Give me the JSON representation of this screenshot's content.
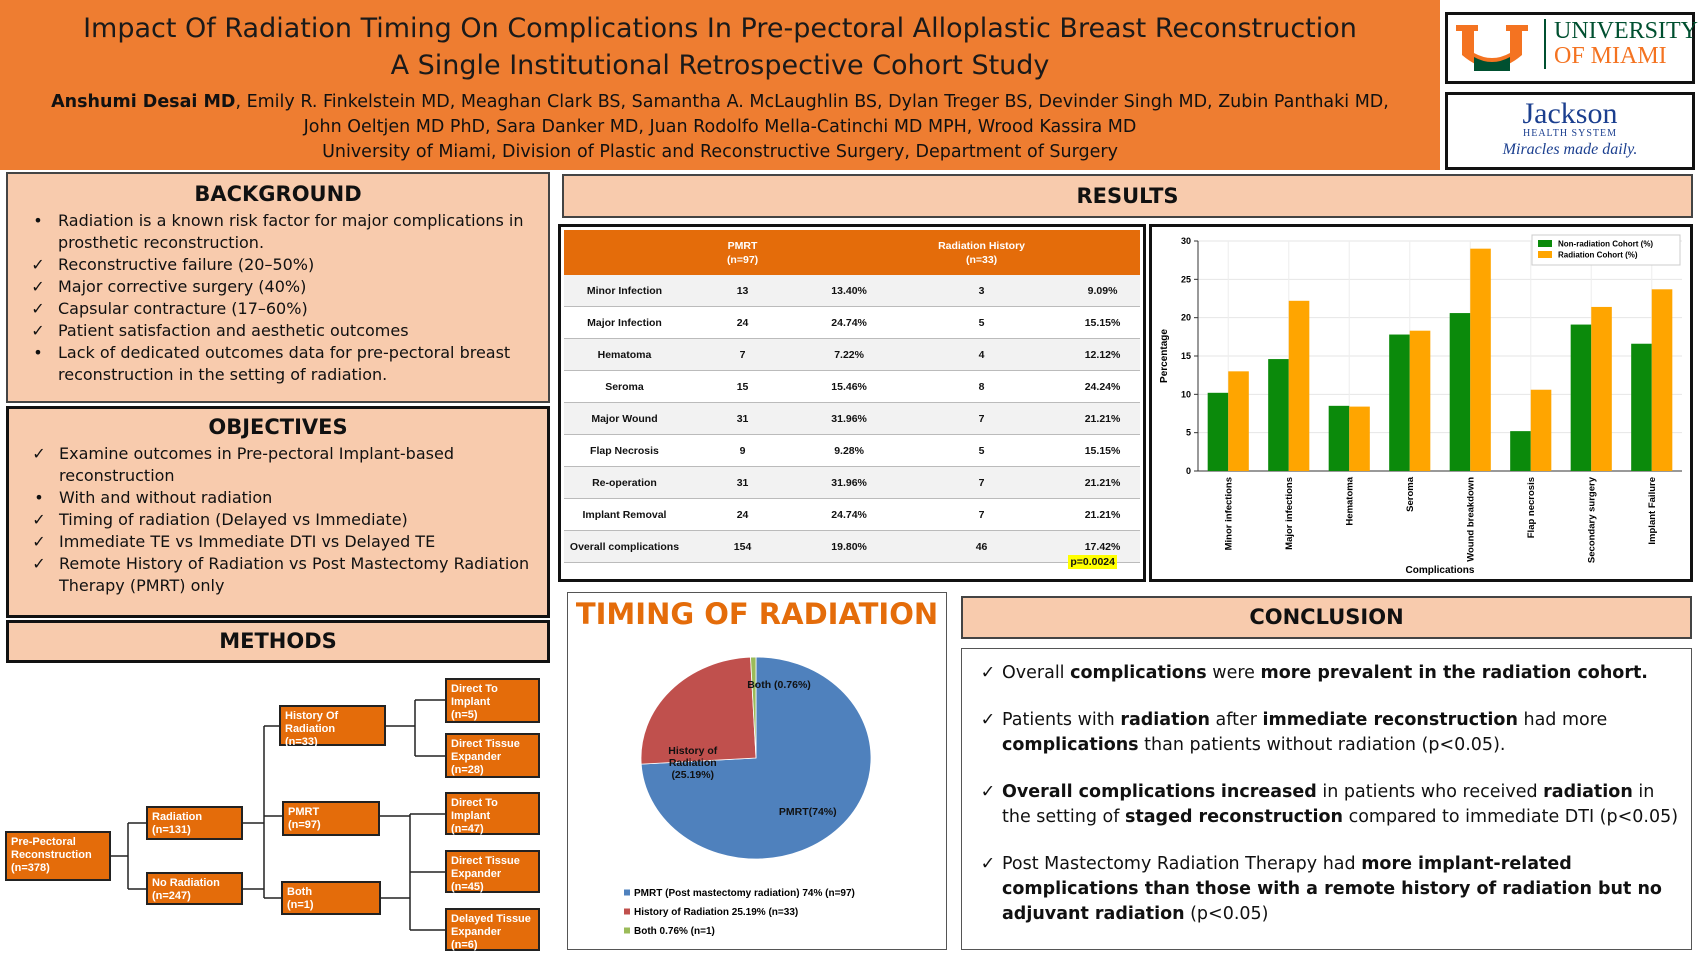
{
  "header": {
    "title_line1": "Impact Of Radiation Timing On Complications In Pre-pectoral Alloplastic Breast Reconstruction",
    "title_line2": "A Single Institutional Retrospective Cohort Study",
    "authors": [
      {
        "text": "Anshumi Desai MD",
        "bold": true
      },
      {
        "text": ", Emily R. Finkelstein MD, Meaghan Clark BS, Samantha A. McLaughlin BS, Dylan Treger BS, Devinder Singh MD, Zubin Panthaki MD, John Oeltjen MD PhD, Sara Danker MD, Juan Rodolfo Mella-Catinchi MD MPH, Wrood Kassira MD"
      }
    ],
    "affiliation": "University of Miami, Division of Plastic and Reconstructive Surgery, Department of Surgery"
  },
  "logos": {
    "um_line1": "UNIVERSITY",
    "um_line2": "OF MIAMI",
    "jackson_name": "Jackson",
    "jackson_sub": "HEALTH SYSTEM",
    "jackson_tagline": "Miracles made daily."
  },
  "background": {
    "heading": "BACKGROUND",
    "items": [
      {
        "marker": "•",
        "text": "Radiation is a known risk factor for major complications in prosthetic reconstruction."
      },
      {
        "marker": "✓",
        "text": "Reconstructive failure (20–50%)"
      },
      {
        "marker": "✓",
        "text": "Major corrective surgery (40%)"
      },
      {
        "marker": "✓",
        "text": "Capsular contracture (17–60%)"
      },
      {
        "marker": "✓",
        "text": "Patient satisfaction and aesthetic outcomes"
      },
      {
        "marker": "•",
        "text": "Lack of dedicated outcomes data for pre-pectoral breast reconstruction in the setting of radiation."
      }
    ]
  },
  "objectives": {
    "heading": "OBJECTIVES",
    "items": [
      {
        "marker": "✓",
        "text": "Examine outcomes in Pre-pectoral Implant-based reconstruction"
      },
      {
        "marker": "•",
        "text": "With and without radiation"
      },
      {
        "marker": "✓",
        "text": "Timing of radiation  (Delayed vs Immediate)"
      },
      {
        "marker": "✓",
        "text": "Immediate TE vs Immediate DTI  vs Delayed TE"
      },
      {
        "marker": "✓",
        "text": "Remote History of Radiation vs Post Mastectomy Radiation Therapy (PMRT) only"
      }
    ]
  },
  "methods": {
    "heading": "METHODS",
    "nodes": [
      {
        "label": "Pre-Pectoral Reconstruction",
        "n": "(n=378)"
      },
      {
        "label": "Radiation",
        "n": "(n=131)"
      },
      {
        "label": "No Radiation",
        "n": "(n=247)"
      },
      {
        "label": "History Of Radiation",
        "n": "(n=33)"
      },
      {
        "label": "PMRT",
        "n": "(n=97)"
      },
      {
        "label": "Both",
        "n": "(n=1)"
      },
      {
        "label": "Direct To Implant",
        "n": "(n=5)"
      },
      {
        "label": "Direct Tissue Expander",
        "n": "(n=28)"
      },
      {
        "label": "Direct To Implant",
        "n": "(n=47)"
      },
      {
        "label": "Direct Tissue Expander",
        "n": "(n=45)"
      },
      {
        "label": "Delayed Tissue Expander",
        "n": "(n=6)"
      }
    ]
  },
  "results": {
    "heading": "RESULTS",
    "table": {
      "pmrt": "PMRT",
      "pmrt_n": "(n=97)",
      "rad": "Radiation History",
      "rad_n": "(n=33)",
      "rows": [
        [
          "Minor Infection",
          "13",
          "13.40%",
          "3",
          "9.09%"
        ],
        [
          "Major Infection",
          "24",
          "24.74%",
          "5",
          "15.15%"
        ],
        [
          "Hematoma",
          "7",
          "7.22%",
          "4",
          "12.12%"
        ],
        [
          "Seroma",
          "15",
          "15.46%",
          "8",
          "24.24%"
        ],
        [
          "Major Wound",
          "31",
          "31.96%",
          "7",
          "21.21%"
        ],
        [
          "Flap Necrosis",
          "9",
          "9.28%",
          "5",
          "15.15%"
        ],
        [
          "Re-operation",
          "31",
          "31.96%",
          "7",
          "21.21%"
        ],
        [
          "Implant Removal",
          "24",
          "24.74%",
          "7",
          "21.21%"
        ],
        [
          "Overall complications",
          "154",
          "19.80%",
          "46",
          "17.42%"
        ]
      ],
      "p_value": "p=0.0024"
    },
    "chart": {
      "type": "bar",
      "x_label": "Complications",
      "y_label": "Percentage",
      "categories": [
        "Minor infections",
        "Major infections",
        "Hematoma",
        "Seroma",
        "Wound breakdown",
        "Flap necrosis",
        "Secondary surgery",
        "Implant Failure"
      ],
      "series": [
        {
          "name": "Non-radiation Cohort (%)",
          "color": "#0b8a0b",
          "values": [
            10.2,
            14.6,
            8.5,
            17.8,
            20.6,
            5.2,
            19.1,
            16.6
          ]
        },
        {
          "name": "Radiation Cohort (%)",
          "color": "#ffa500",
          "values": [
            13.0,
            22.2,
            8.4,
            18.3,
            29.0,
            10.6,
            21.4,
            23.7
          ]
        }
      ],
      "ylim": [
        0,
        30
      ],
      "yticks": [
        0,
        5,
        10,
        15,
        20,
        25,
        30
      ],
      "grid": true,
      "legend": "top-right"
    }
  },
  "timing": {
    "type": "pie",
    "title": "TIMING OF RADIATION",
    "categories": [
      "PMRT (Post mastectomy radiation) 74% (n=97)",
      "History of Radiation 25.19% (n=33)",
      "Both 0.76% (n=1)"
    ],
    "values": [
      74,
      25.19,
      0.76
    ],
    "value_labels": [
      "PMRT(74%)",
      "History of Radiation (25.19%)",
      "Both (0.76%)"
    ],
    "colors": [
      "#4f81bd",
      "#c0504d",
      "#9bbb59"
    ]
  },
  "conclusion": {
    "heading": "CONCLUSION",
    "items": [
      {
        "marker": "✓",
        "segments": [
          {
            "text": "Overall "
          },
          {
            "text": "complications",
            "bold": true
          },
          {
            "text": " were "
          },
          {
            "text": "more prevalent in the radiation cohort.",
            "bold": true
          }
        ]
      },
      {
        "marker": "✓",
        "segments": [
          {
            "text": "Patients with "
          },
          {
            "text": "radiation",
            "bold": true
          },
          {
            "text": " after "
          },
          {
            "text": "immediate reconstruction",
            "bold": true
          },
          {
            "text": " had more "
          },
          {
            "text": "complications",
            "bold": true
          },
          {
            "text": " than patients without radiation (p<0.05)."
          }
        ]
      },
      {
        "marker": "✓",
        "segments": [
          {
            "text": "Overall complications",
            "bold": true
          },
          {
            "text": "  "
          },
          {
            "text": "increased",
            "bold": true
          },
          {
            "text": " in patients who received "
          },
          {
            "text": "radiation",
            "bold": true
          },
          {
            "text": " in the setting of "
          },
          {
            "text": "staged reconstruction",
            "bold": true
          },
          {
            "text": " compared to immediate DTI (p<0.05)"
          }
        ]
      },
      {
        "marker": "✓",
        "segments": [
          {
            "text": "Post Mastectomy Radiation Therapy"
          },
          {
            "text": " had "
          },
          {
            "text": "more  implant-related complications than those with a remote history of radiation but no adjuvant radiation",
            "bold": true
          },
          {
            "text": " (p<0.05)"
          }
        ]
      }
    ]
  }
}
